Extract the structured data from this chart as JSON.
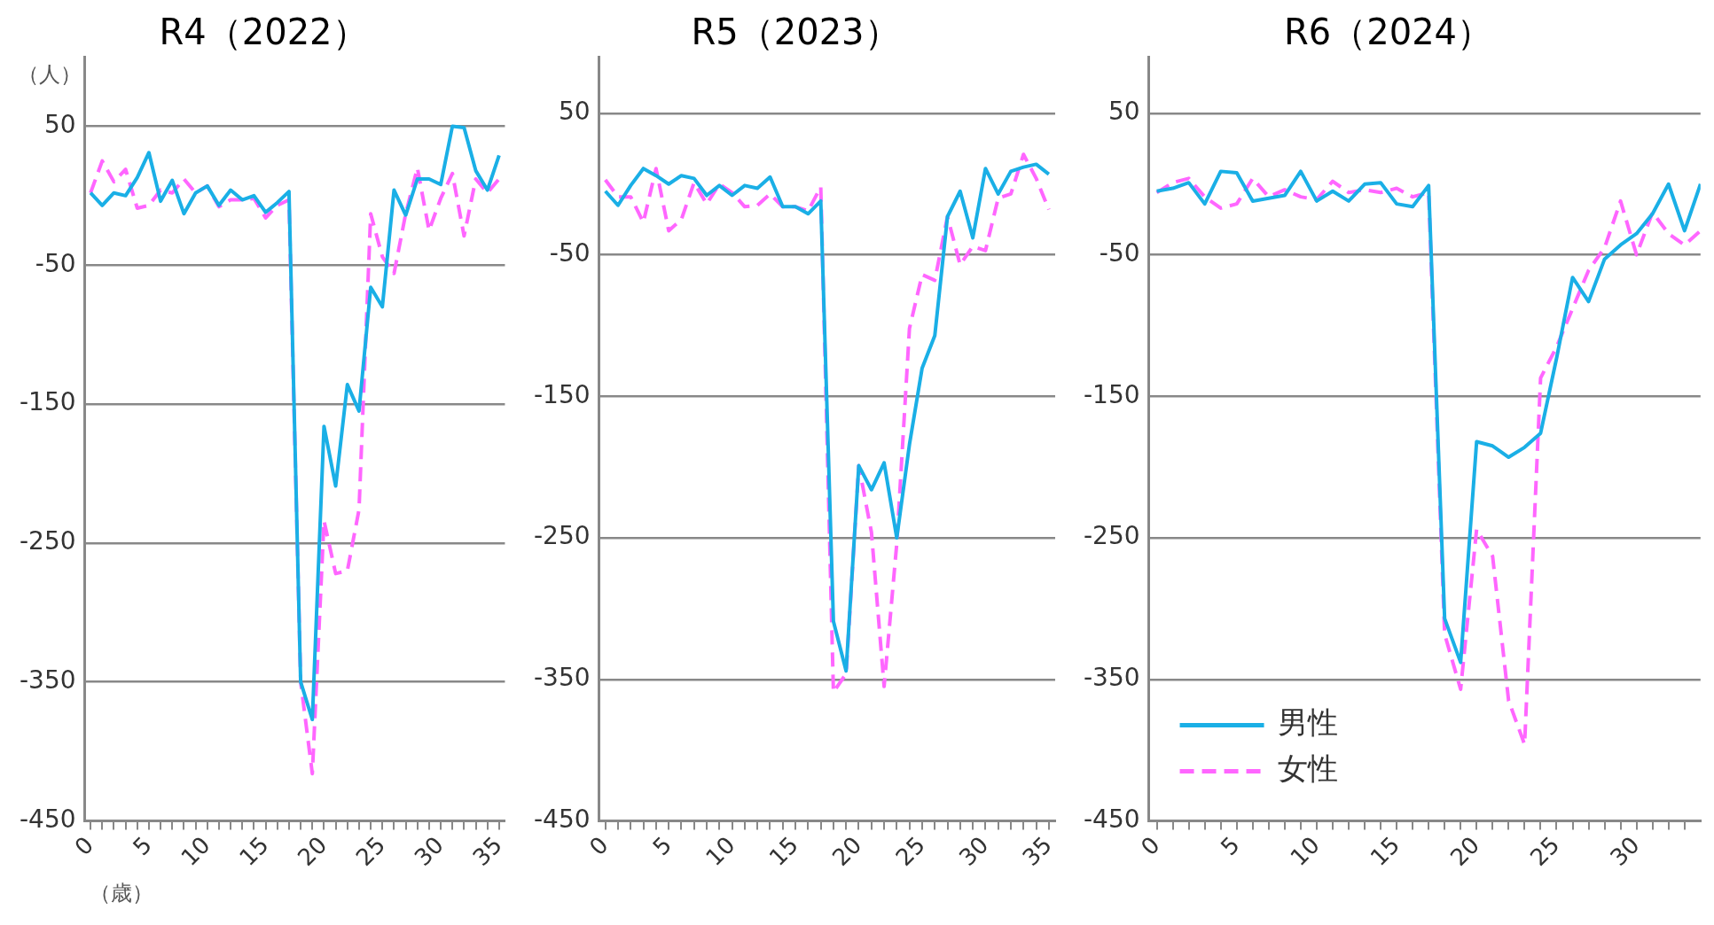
{
  "chart_data": [
    {
      "type": "line",
      "title": "R4（2022）",
      "ylabel": "（人）",
      "xlabel": "（歳）",
      "x": [
        0,
        1,
        2,
        3,
        4,
        5,
        6,
        7,
        8,
        9,
        10,
        11,
        12,
        13,
        14,
        15,
        16,
        17,
        18,
        19,
        20,
        21,
        22,
        23,
        24,
        25,
        26,
        27,
        28,
        29,
        30,
        31,
        32,
        33,
        34,
        35
      ],
      "xlim": [
        -0.5,
        35.5
      ],
      "xticks": [
        0,
        {
          "value": 1,
          "label": null
        },
        {
          "value": 2,
          "label": null
        },
        {
          "value": 3,
          "label": null
        },
        {
          "value": 4,
          "label": null
        },
        5,
        {
          "value": 6,
          "label": null
        },
        {
          "value": 7,
          "label": null
        },
        {
          "value": 8,
          "label": null
        },
        {
          "value": 9,
          "label": null
        },
        10,
        {
          "value": 11,
          "label": null
        },
        {
          "value": 12,
          "label": null
        },
        {
          "value": 13,
          "label": null
        },
        {
          "value": 14,
          "label": null
        },
        15,
        {
          "value": 16,
          "label": null
        },
        {
          "value": 17,
          "label": null
        },
        {
          "value": 18,
          "label": null
        },
        {
          "value": 19,
          "label": null
        },
        20,
        {
          "value": 21,
          "label": null
        },
        {
          "value": 22,
          "label": null
        },
        {
          "value": 23,
          "label": null
        },
        {
          "value": 24,
          "label": null
        },
        25,
        {
          "value": 26,
          "label": null
        },
        {
          "value": 27,
          "label": null
        },
        {
          "value": 28,
          "label": null
        },
        {
          "value": 29,
          "label": null
        },
        30,
        {
          "value": 31,
          "label": null
        },
        {
          "value": 32,
          "label": null
        },
        {
          "value": 33,
          "label": null
        },
        {
          "value": 34,
          "label": null
        },
        35
      ],
      "ylim": [
        -450,
        100
      ],
      "yticks": [
        -450,
        -350,
        -250,
        -150,
        -50,
        50
      ],
      "grid": "y",
      "marker": "none",
      "legend": false,
      "series": [
        {
          "color": "#1aafe6",
          "line_style": "solid",
          "values": [
            2,
            -7,
            2,
            0,
            13,
            31,
            -4,
            11,
            -13,
            2,
            7,
            -7,
            4,
            -3,
            0,
            -12,
            -5,
            3,
            -350,
            -377,
            -166,
            -209,
            -136,
            -155,
            -66,
            -80,
            4,
            -14,
            12,
            12,
            8,
            50,
            49,
            18,
            4,
            29
          ]
        },
        {
          "color": "#ff66ff",
          "line_style": "dashed",
          "values": [
            2,
            25,
            10,
            19,
            -9,
            -7,
            4,
            2,
            12,
            2,
            7,
            -8,
            -3,
            -3,
            -2,
            -16,
            -7,
            -3,
            -350,
            -416,
            -234,
            -272,
            -270,
            -226,
            -13,
            -44,
            -56,
            -13,
            20,
            -25,
            -2,
            16,
            -29,
            12,
            2,
            12
          ]
        }
      ]
    },
    {
      "type": "line",
      "title": "R5（2023）",
      "x": [
        0,
        1,
        2,
        3,
        4,
        5,
        6,
        7,
        8,
        9,
        10,
        11,
        12,
        13,
        14,
        15,
        16,
        17,
        18,
        19,
        20,
        21,
        22,
        23,
        24,
        25,
        26,
        27,
        28,
        29,
        30,
        31,
        32,
        33,
        34,
        35
      ],
      "xlim": [
        -0.5,
        35.5
      ],
      "xticks": [
        0,
        {
          "value": 1,
          "label": null
        },
        {
          "value": 2,
          "label": null
        },
        {
          "value": 3,
          "label": null
        },
        {
          "value": 4,
          "label": null
        },
        5,
        {
          "value": 6,
          "label": null
        },
        {
          "value": 7,
          "label": null
        },
        {
          "value": 8,
          "label": null
        },
        {
          "value": 9,
          "label": null
        },
        10,
        {
          "value": 11,
          "label": null
        },
        {
          "value": 12,
          "label": null
        },
        {
          "value": 13,
          "label": null
        },
        {
          "value": 14,
          "label": null
        },
        15,
        {
          "value": 16,
          "label": null
        },
        {
          "value": 17,
          "label": null
        },
        {
          "value": 18,
          "label": null
        },
        {
          "value": 19,
          "label": null
        },
        20,
        {
          "value": 21,
          "label": null
        },
        {
          "value": 22,
          "label": null
        },
        {
          "value": 23,
          "label": null
        },
        {
          "value": 24,
          "label": null
        },
        25,
        {
          "value": 26,
          "label": null
        },
        {
          "value": 27,
          "label": null
        },
        {
          "value": 28,
          "label": null
        },
        {
          "value": 29,
          "label": null
        },
        30,
        {
          "value": 31,
          "label": null
        },
        {
          "value": 32,
          "label": null
        },
        {
          "value": 33,
          "label": null
        },
        {
          "value": 34,
          "label": null
        },
        35
      ],
      "ylim": [
        -450,
        90
      ],
      "yticks": [
        -450,
        -350,
        -250,
        -150,
        -50,
        50
      ],
      "grid": "y",
      "marker": "none",
      "legend": false,
      "series": [
        {
          "color": "#1aafe6",
          "line_style": "solid",
          "values": [
            -5,
            -15,
            -1,
            11,
            6,
            0,
            6,
            4,
            -8,
            -1,
            -8,
            -1,
            -3,
            5,
            -16,
            -16,
            -21,
            -12,
            -309,
            -344,
            -199,
            -216,
            -197,
            -250,
            -184,
            -130,
            -107,
            -23,
            -5,
            -38,
            11,
            -7,
            9,
            12,
            14,
            7
          ]
        },
        {
          "color": "#ff66ff",
          "line_style": "dashed",
          "values": [
            3,
            -9,
            -9,
            -27,
            11,
            -33,
            -25,
            1,
            -14,
            0,
            -6,
            -16,
            -15,
            -7,
            -16,
            -16,
            -19,
            -2,
            -359,
            -346,
            -199,
            -246,
            -355,
            -254,
            -102,
            -64,
            -68,
            -23,
            -57,
            -44,
            -47,
            -10,
            -7,
            21,
            4,
            -18
          ]
        }
      ]
    },
    {
      "type": "line",
      "title": "R6（2024）",
      "x": [
        0,
        1,
        2,
        3,
        4,
        5,
        6,
        7,
        8,
        9,
        10,
        11,
        12,
        13,
        14,
        15,
        16,
        17,
        18,
        19,
        20,
        21,
        22,
        23,
        24,
        25,
        26,
        27,
        28,
        29,
        30,
        31,
        32,
        33,
        34
      ],
      "xlim": [
        -0.5,
        34
      ],
      "xticks": [
        0,
        {
          "value": 1,
          "label": null
        },
        {
          "value": 2,
          "label": null
        },
        {
          "value": 3,
          "label": null
        },
        {
          "value": 4,
          "label": null
        },
        5,
        {
          "value": 6,
          "label": null
        },
        {
          "value": 7,
          "label": null
        },
        {
          "value": 8,
          "label": null
        },
        {
          "value": 9,
          "label": null
        },
        10,
        {
          "value": 11,
          "label": null
        },
        {
          "value": 12,
          "label": null
        },
        {
          "value": 13,
          "label": null
        },
        {
          "value": 14,
          "label": null
        },
        15,
        {
          "value": 16,
          "label": null
        },
        {
          "value": 17,
          "label": null
        },
        {
          "value": 18,
          "label": null
        },
        {
          "value": 19,
          "label": null
        },
        20,
        {
          "value": 21,
          "label": null
        },
        {
          "value": 22,
          "label": null
        },
        {
          "value": 23,
          "label": null
        },
        {
          "value": 24,
          "label": null
        },
        25,
        {
          "value": 26,
          "label": null
        },
        {
          "value": 27,
          "label": null
        },
        {
          "value": 28,
          "label": null
        },
        {
          "value": 29,
          "label": null
        },
        30,
        {
          "value": 31,
          "label": null
        },
        {
          "value": 32,
          "label": null
        },
        {
          "value": 33,
          "label": null
        }
      ],
      "ylim": [
        -450,
        90
      ],
      "yticks": [
        -450,
        -350,
        -250,
        -150,
        -50,
        50
      ],
      "grid": "y",
      "marker": "none",
      "legend": "bottom left",
      "series": [
        {
          "name": "男性",
          "color": "#1aafe6",
          "line_style": "solid",
          "values": [
            -5,
            -3,
            1,
            -14,
            9,
            8,
            -12,
            -10,
            -8,
            9,
            -12,
            -5,
            -12,
            0,
            1,
            -14,
            -16,
            -1,
            -307,
            -338,
            -182,
            -185,
            -193,
            -186,
            -176,
            -123,
            -66,
            -83,
            -53,
            -43,
            -35,
            -21,
            0,
            -33,
            0
          ]
        },
        {
          "name": "女性",
          "color": "#ff66ff",
          "line_style": "dashed",
          "values": [
            -6,
            1,
            4,
            -9,
            -17,
            -14,
            4,
            -9,
            -4,
            -9,
            -11,
            2,
            -6,
            -4,
            -6,
            -3,
            -9,
            -6,
            -318,
            -357,
            -244,
            -263,
            -365,
            -396,
            -137,
            -115,
            -88,
            -61,
            -45,
            -12,
            -50,
            -20,
            -35,
            -43,
            -33
          ]
        }
      ]
    }
  ]
}
